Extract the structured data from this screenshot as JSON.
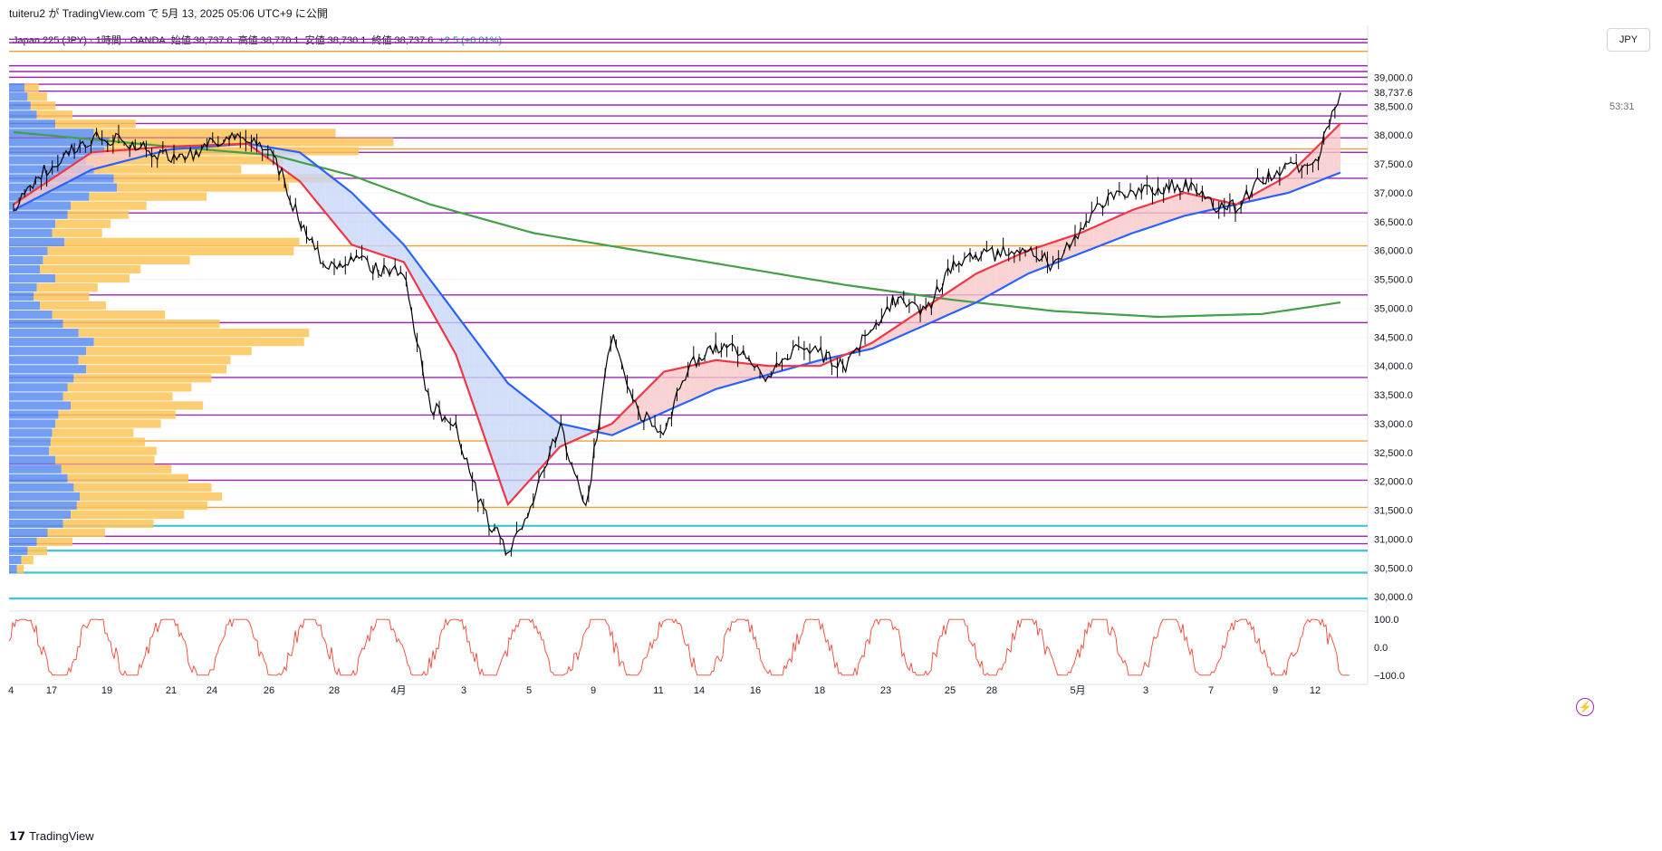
{
  "header": {
    "published_line": "tuiteru2 が TradingView.com で 5月 13, 2025 05:06 UTC+9 に公開"
  },
  "legend": {
    "symbol": "Japan 225 (JPY) · 1時間 · OANDA",
    "open_label": "始値",
    "open_value": "38,737.6",
    "high_label": "高値",
    "high_value": "38,770.1",
    "low_label": "安値",
    "low_value": "38,730.1",
    "close_label": "終値",
    "close_value": "38,737.6",
    "change": "+2.5 (+0.01%)"
  },
  "currency_button": "JPY",
  "countdown": "53:31",
  "footer": {
    "logo": "𝟭𝟳",
    "brand": "TradingView"
  },
  "colors": {
    "candle": "#000000",
    "ema_fast": "#f23645",
    "ema_slow": "#2962ff",
    "sma_long": "#43a047",
    "fill_bull": "#f8c8c8",
    "fill_bear": "#c8d6f8",
    "vp_up": "#5b8def",
    "vp_down": "#fbc658",
    "hline_purple": "#9c27b0",
    "hline_orange": "#f0a030",
    "hline_cyan": "#40c4d8",
    "oscillator": "#f44336"
  },
  "chart_data": {
    "type": "line",
    "symbol": "Japan 225 (JPY)",
    "timeframe": "1時間",
    "x_ticks": [
      "4",
      "17",
      "19",
      "21",
      "24",
      "26",
      "28",
      "4月",
      "3",
      "5",
      "9",
      "11",
      "14",
      "16",
      "18",
      "23",
      "25",
      "28",
      "5月",
      "3",
      "7",
      "9",
      "12"
    ],
    "y_ticks": [
      "39,000.0",
      "38,500.0",
      "38,000.0",
      "37,500.0",
      "37,000.0",
      "36,500.0",
      "36,000.0",
      "35,500.0",
      "35,000.0",
      "34,500.0",
      "34,000.0",
      "33,500.0",
      "33,000.0",
      "32,500.0",
      "32,000.0",
      "31,500.0",
      "31,000.0",
      "30,500.0",
      "30,000.0"
    ],
    "ylim": [
      29800,
      39900
    ],
    "last_price": "38,737.6",
    "close_approx": [
      [
        0,
        36700
      ],
      [
        1,
        37300
      ],
      [
        2,
        37650
      ],
      [
        3,
        37950
      ],
      [
        4,
        37900
      ],
      [
        5,
        37750
      ],
      [
        6,
        37650
      ],
      [
        7,
        37700
      ],
      [
        8,
        37950
      ],
      [
        9,
        37900
      ],
      [
        10,
        37650
      ],
      [
        11,
        36500
      ],
      [
        12,
        35700
      ],
      [
        13,
        35900
      ],
      [
        14,
        35650
      ],
      [
        15,
        35600
      ],
      [
        16,
        33300
      ],
      [
        17,
        33000
      ],
      [
        18,
        31500
      ],
      [
        19,
        30800
      ],
      [
        20,
        31700
      ],
      [
        21,
        33000
      ],
      [
        22,
        31500
      ],
      [
        23,
        34600
      ],
      [
        24,
        33200
      ],
      [
        25,
        32900
      ],
      [
        26,
        34000
      ],
      [
        27,
        34300
      ],
      [
        28,
        34300
      ],
      [
        29,
        33800
      ],
      [
        30,
        34300
      ],
      [
        31,
        34200
      ],
      [
        32,
        34000
      ],
      [
        33,
        34700
      ],
      [
        34,
        35200
      ],
      [
        35,
        34900
      ],
      [
        36,
        35700
      ],
      [
        37,
        35900
      ],
      [
        38,
        35950
      ],
      [
        39,
        36050
      ],
      [
        40,
        35700
      ],
      [
        41,
        36400
      ],
      [
        42,
        36900
      ],
      [
        43,
        36950
      ],
      [
        44,
        37100
      ],
      [
        45,
        37150
      ],
      [
        46,
        36800
      ],
      [
        47,
        36750
      ],
      [
        48,
        37250
      ],
      [
        49,
        37400
      ],
      [
        50,
        37450
      ],
      [
        51,
        38737.6
      ]
    ],
    "ema_fast_approx": [
      [
        0,
        36800
      ],
      [
        3,
        37700
      ],
      [
        6,
        37800
      ],
      [
        9,
        37850
      ],
      [
        11,
        37200
      ],
      [
        13,
        36100
      ],
      [
        15,
        35800
      ],
      [
        17,
        34200
      ],
      [
        19,
        31600
      ],
      [
        21,
        32600
      ],
      [
        23,
        33000
      ],
      [
        25,
        33900
      ],
      [
        27,
        34100
      ],
      [
        29,
        34000
      ],
      [
        31,
        34000
      ],
      [
        33,
        34400
      ],
      [
        35,
        35000
      ],
      [
        37,
        35600
      ],
      [
        39,
        36000
      ],
      [
        41,
        36300
      ],
      [
        43,
        36700
      ],
      [
        45,
        37000
      ],
      [
        47,
        36800
      ],
      [
        49,
        37300
      ],
      [
        51,
        38200
      ]
    ],
    "ema_slow_approx": [
      [
        0,
        36700
      ],
      [
        3,
        37400
      ],
      [
        6,
        37750
      ],
      [
        9,
        37850
      ],
      [
        11,
        37700
      ],
      [
        13,
        37000
      ],
      [
        15,
        36100
      ],
      [
        17,
        34900
      ],
      [
        19,
        33700
      ],
      [
        21,
        33000
      ],
      [
        23,
        32800
      ],
      [
        25,
        33200
      ],
      [
        27,
        33600
      ],
      [
        29,
        33850
      ],
      [
        31,
        34100
      ],
      [
        33,
        34300
      ],
      [
        35,
        34700
      ],
      [
        37,
        35100
      ],
      [
        39,
        35600
      ],
      [
        41,
        35950
      ],
      [
        43,
        36300
      ],
      [
        45,
        36600
      ],
      [
        47,
        36800
      ],
      [
        49,
        37000
      ],
      [
        51,
        37350
      ]
    ],
    "sma_long_approx": [
      [
        0,
        38050
      ],
      [
        6,
        37800
      ],
      [
        10,
        37650
      ],
      [
        13,
        37300
      ],
      [
        16,
        36800
      ],
      [
        20,
        36300
      ],
      [
        24,
        36000
      ],
      [
        28,
        35700
      ],
      [
        32,
        35400
      ],
      [
        36,
        35150
      ],
      [
        40,
        34950
      ],
      [
        44,
        34850
      ],
      [
        48,
        34900
      ],
      [
        51,
        35100
      ]
    ],
    "horizontal_levels": [
      {
        "price": 39660,
        "color": "purple"
      },
      {
        "price": 39600,
        "color": "purple"
      },
      {
        "price": 39450,
        "color": "orange"
      },
      {
        "price": 39200,
        "color": "purple"
      },
      {
        "price": 39100,
        "color": "purple"
      },
      {
        "price": 39000,
        "color": "purple"
      },
      {
        "price": 38880,
        "color": "purple"
      },
      {
        "price": 38760,
        "color": "purple"
      },
      {
        "price": 38520,
        "color": "purple"
      },
      {
        "price": 38330,
        "color": "purple"
      },
      {
        "price": 38200,
        "color": "purple"
      },
      {
        "price": 37950,
        "color": "purple"
      },
      {
        "price": 37760,
        "color": "orange"
      },
      {
        "price": 37700,
        "color": "purple"
      },
      {
        "price": 37250,
        "color": "purple"
      },
      {
        "price": 36650,
        "color": "purple"
      },
      {
        "price": 36080,
        "color": "orange"
      },
      {
        "price": 35230,
        "color": "purple"
      },
      {
        "price": 34750,
        "color": "purple"
      },
      {
        "price": 33800,
        "color": "purple"
      },
      {
        "price": 33150,
        "color": "purple"
      },
      {
        "price": 32700,
        "color": "orange"
      },
      {
        "price": 32300,
        "color": "purple"
      },
      {
        "price": 32020,
        "color": "purple"
      },
      {
        "price": 31550,
        "color": "orange"
      },
      {
        "price": 31230,
        "color": "cyan"
      },
      {
        "price": 31050,
        "color": "purple"
      },
      {
        "price": 30920,
        "color": "purple"
      },
      {
        "price": 30800,
        "color": "cyan"
      },
      {
        "price": 30420,
        "color": "cyan"
      },
      {
        "price": 29970,
        "color": "cyan"
      }
    ],
    "volume_profile": {
      "rows": 54,
      "price_range": [
        30400,
        38900
      ],
      "up": [
        0.1,
        0.12,
        0.14,
        0.18,
        0.3,
        0.55,
        0.65,
        0.62,
        0.5,
        0.55,
        0.68,
        0.7,
        0.52,
        0.4,
        0.38,
        0.3,
        0.28,
        0.36,
        0.25,
        0.22,
        0.2,
        0.3,
        0.18,
        0.16,
        0.2,
        0.28,
        0.35,
        0.45,
        0.55,
        0.5,
        0.45,
        0.5,
        0.42,
        0.38,
        0.35,
        0.4,
        0.32,
        0.3,
        0.28,
        0.27,
        0.26,
        0.3,
        0.34,
        0.38,
        0.42,
        0.46,
        0.44,
        0.4,
        0.35,
        0.25,
        0.18,
        0.12,
        0.08,
        0.05
      ],
      "down": [
        0.06,
        0.08,
        0.1,
        0.14,
        0.3,
        0.85,
        1.0,
        0.9,
        0.7,
        0.55,
        0.8,
        0.65,
        0.45,
        0.3,
        0.25,
        0.22,
        0.2,
        0.8,
        0.82,
        0.5,
        0.35,
        0.28,
        0.22,
        0.2,
        0.24,
        0.4,
        0.55,
        0.8,
        0.75,
        0.6,
        0.55,
        0.52,
        0.5,
        0.45,
        0.4,
        0.48,
        0.42,
        0.38,
        0.3,
        0.34,
        0.38,
        0.36,
        0.4,
        0.44,
        0.5,
        0.52,
        0.48,
        0.42,
        0.34,
        0.22,
        0.14,
        0.08,
        0.05,
        0.03
      ]
    },
    "oscillator": {
      "y_ticks": [
        "100.0",
        "0.0",
        "−100.0"
      ],
      "ylim": [
        -120,
        120
      ]
    }
  }
}
